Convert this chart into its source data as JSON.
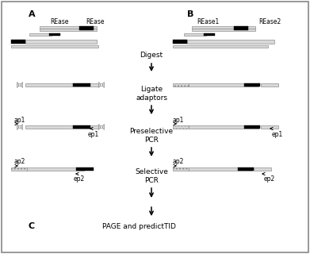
{
  "bg": "white",
  "label_A": "A",
  "label_B": "B",
  "label_C": "C",
  "step1": "Digest",
  "step2": "Ligate\nadaptors",
  "step3": "Preselective\nPCR",
  "step4": "Selective\nPCR",
  "bottom": "PAGE and predictTID",
  "rease_A1": "REase",
  "rease_A2": "REase",
  "rease_B1": "REase1",
  "rease_B2": "REase2",
  "ap1": "ap1",
  "ap2": "ap2",
  "ep1": "ep1",
  "ep2": "ep2",
  "gray": "#c8c8c8",
  "black": "#000000",
  "dgray": "#888888"
}
